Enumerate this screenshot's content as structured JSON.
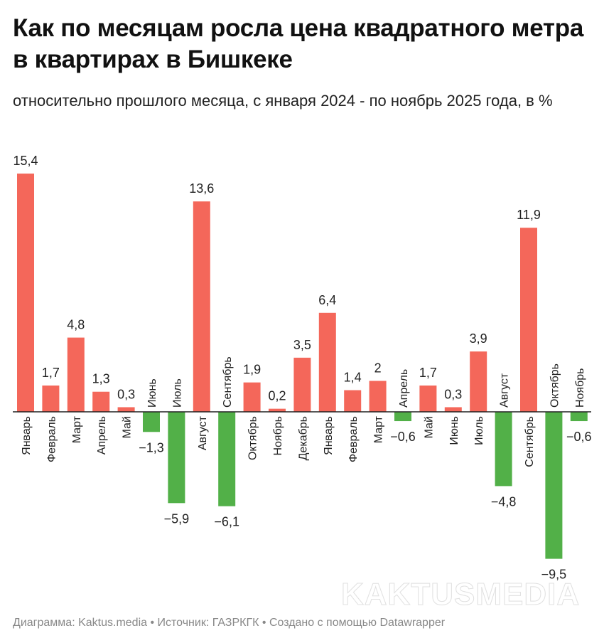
{
  "title": "Как по месяцам росла цена квадратного метра в квартирах в Бишкеке",
  "subtitle": "относительно прошлого месяца, с января 2024 - по ноябрь 2025 года, в %",
  "footer": "Диаграмма: Kaktus.media • Источник: ГАЗРКГК • Создано с помощью Datawrapper",
  "watermark": "KAKTUSMEDIA",
  "colors": {
    "positive": "#f4675a",
    "negative": "#52b048"
  },
  "chart_data": {
    "type": "bar",
    "categories": [
      "Январь",
      "Февраль",
      "Март",
      "Апрель",
      "Май",
      "Июнь",
      "Июль",
      "Август",
      "Сентябрь",
      "Октябрь",
      "Ноябрь",
      "Декабрь",
      "Январь",
      "Февраль",
      "Март",
      "Апрель",
      "Май",
      "Июнь",
      "Июль",
      "Август",
      "Сентябрь",
      "Октябрь",
      "Ноябрь"
    ],
    "values": [
      15.4,
      1.7,
      4.8,
      1.3,
      0.3,
      -1.3,
      -5.9,
      13.6,
      -6.1,
      1.9,
      0.2,
      3.5,
      6.4,
      1.4,
      2,
      -0.6,
      1.7,
      0.3,
      3.9,
      -4.8,
      11.9,
      -9.5,
      -0.6
    ],
    "labels": [
      "15,4",
      "1,7",
      "4,8",
      "1,3",
      "0,3",
      "−1,3",
      "−5,9",
      "13,6",
      "−6,1",
      "1,9",
      "0,2",
      "3,5",
      "6,4",
      "1,4",
      "2",
      "−0,6",
      "1,7",
      "0,3",
      "3,9",
      "−4,8",
      "11,9",
      "−9,5",
      "−0,6"
    ],
    "title": "Как по месяцам росла цена квадратного метра в квартирах в Бишкеке",
    "xlabel": "",
    "ylabel": "",
    "grid": false
  }
}
